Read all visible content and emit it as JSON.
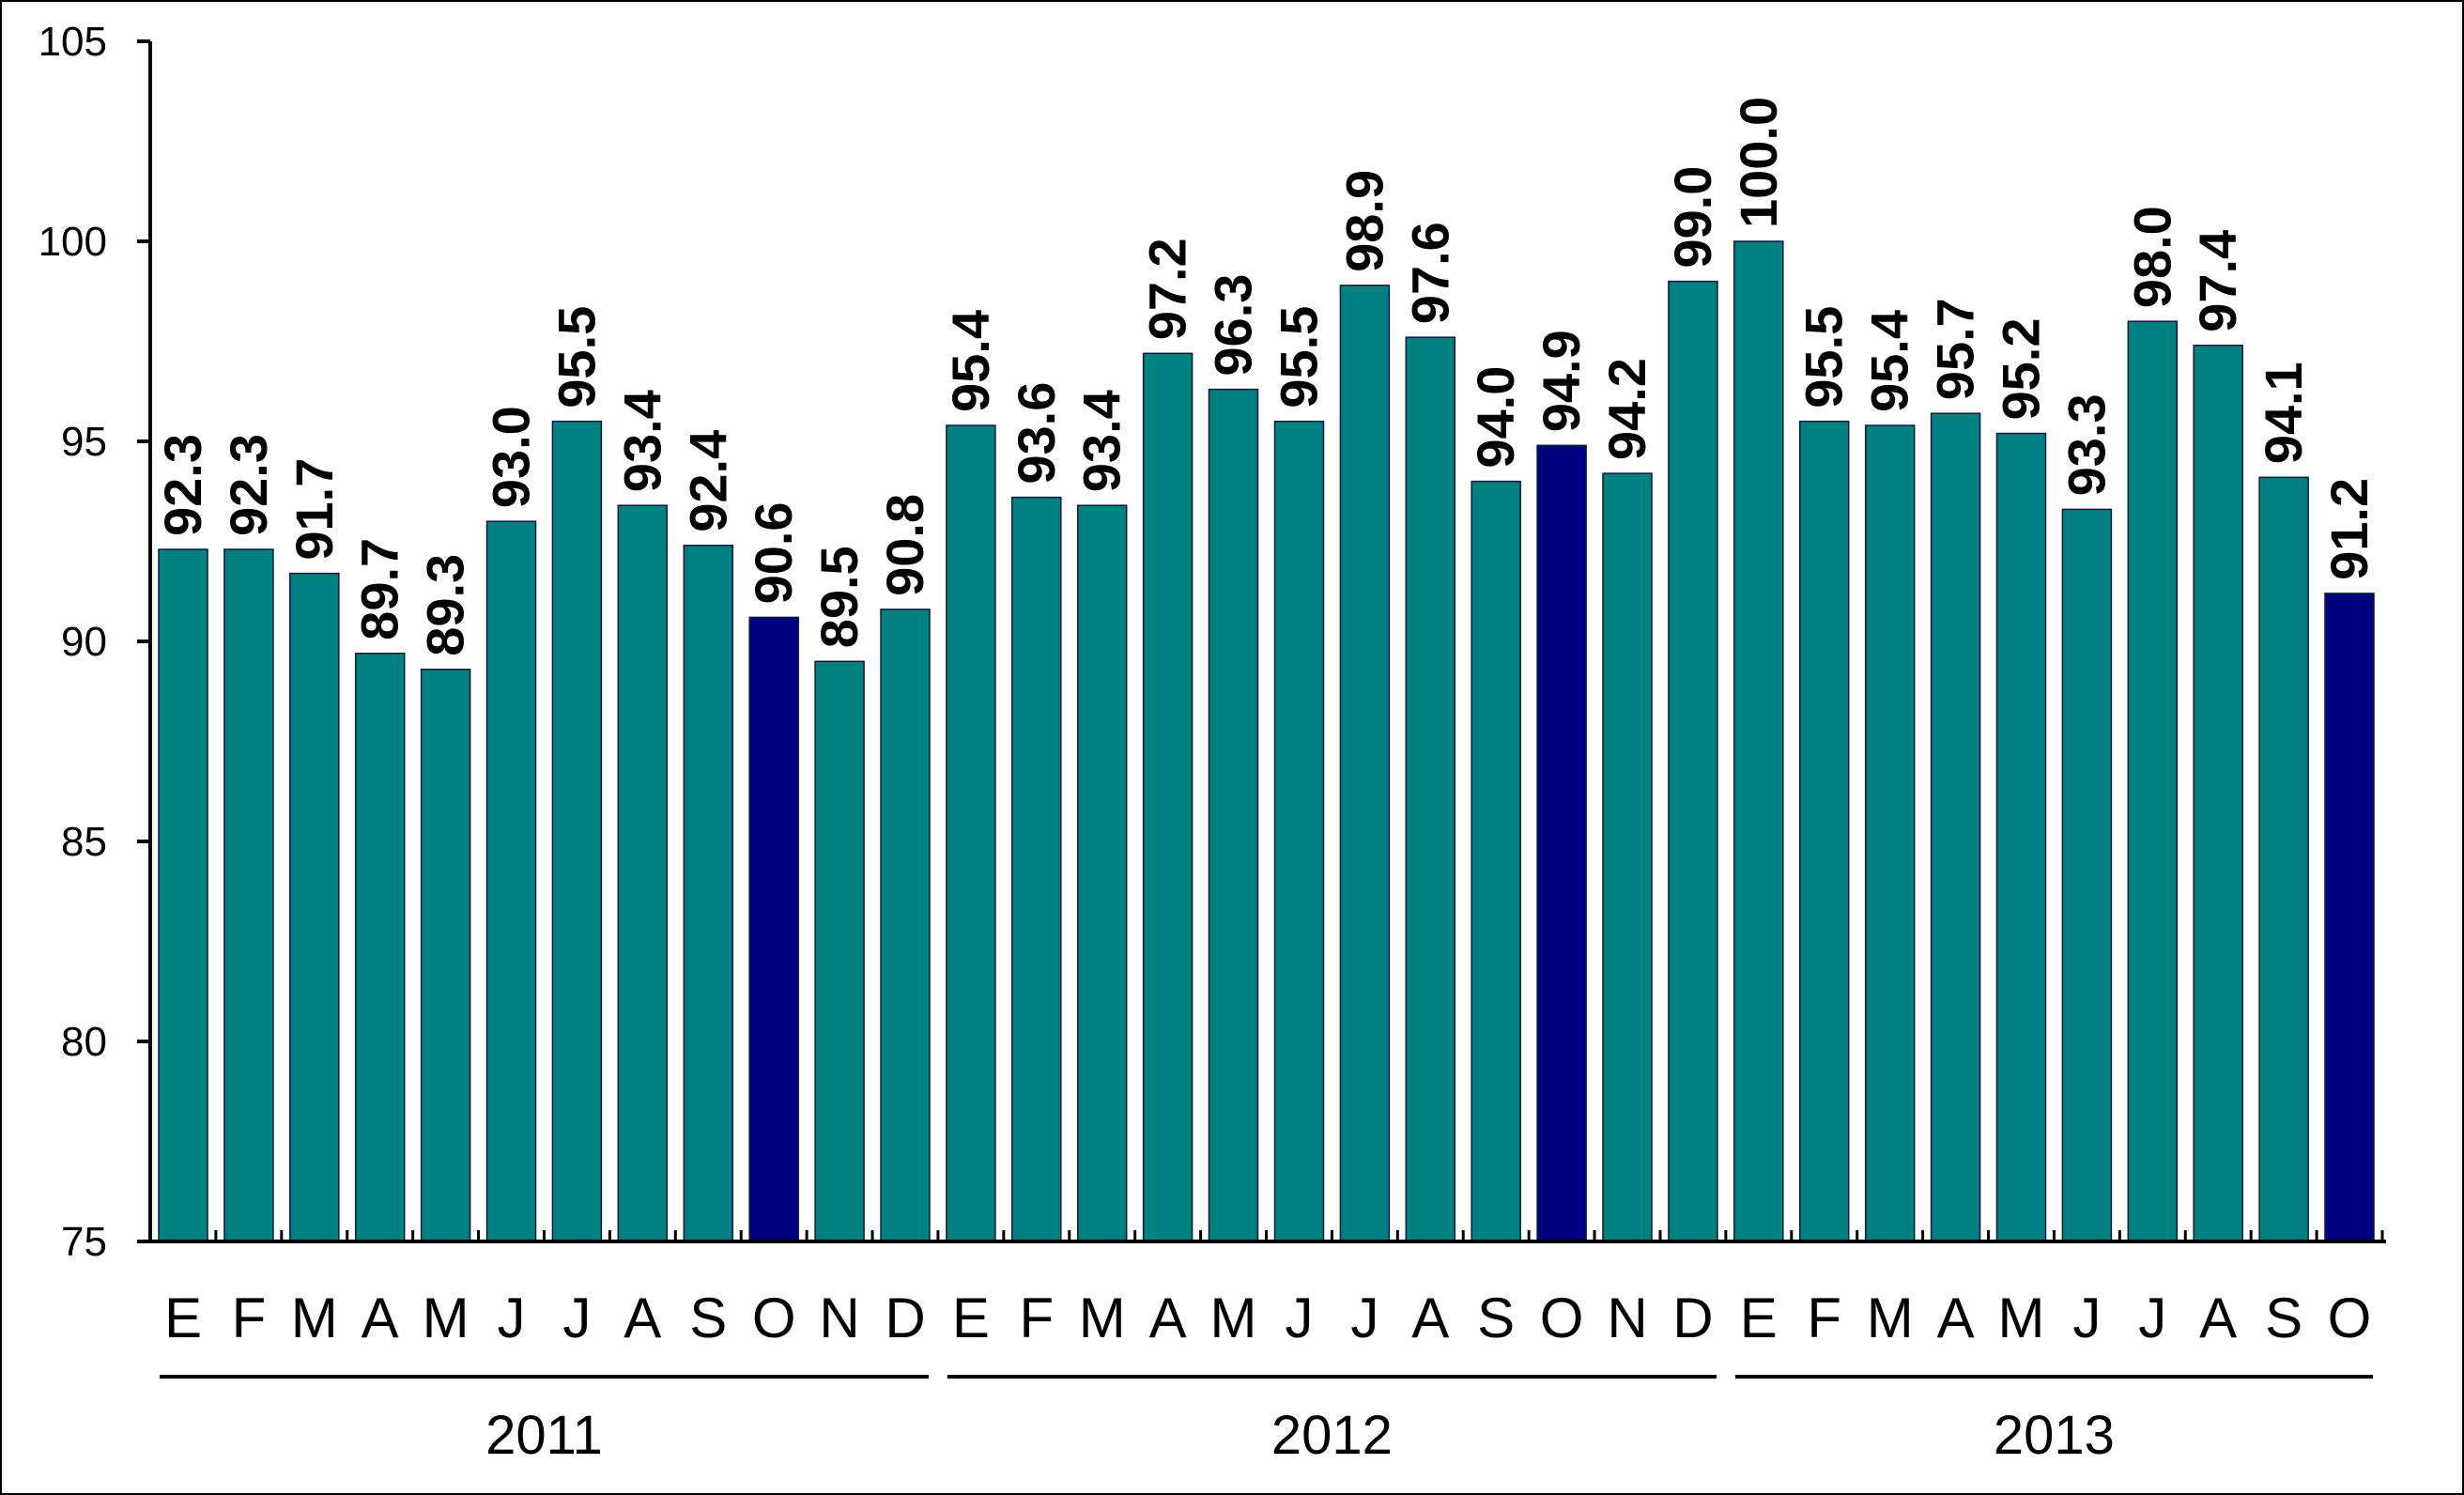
{
  "chart_data": {
    "type": "bar",
    "categories": [
      "E",
      "F",
      "M",
      "A",
      "M",
      "J",
      "J",
      "A",
      "S",
      "O",
      "N",
      "D",
      "E",
      "F",
      "M",
      "A",
      "M",
      "J",
      "J",
      "A",
      "S",
      "O",
      "N",
      "D",
      "E",
      "F",
      "M",
      "A",
      "M",
      "J",
      "J",
      "A",
      "S",
      "O"
    ],
    "values": [
      92.3,
      92.3,
      91.7,
      89.7,
      89.3,
      93.0,
      95.5,
      93.4,
      92.4,
      90.6,
      89.5,
      90.8,
      95.4,
      93.6,
      93.4,
      97.2,
      96.3,
      95.5,
      98.9,
      97.6,
      94.0,
      94.9,
      94.2,
      99.0,
      100.0,
      95.5,
      95.4,
      95.7,
      95.2,
      93.3,
      98.0,
      97.4,
      94.1,
      91.2
    ],
    "value_labels": [
      "92.3",
      "92.3",
      "91.7",
      "89.7",
      "89.3",
      "93.0",
      "95.5",
      "93.4",
      "92.4",
      "90.6",
      "89.5",
      "90.8",
      "95.4",
      "93.6",
      "93.4",
      "97.2",
      "96.3",
      "95.5",
      "98.9",
      "97.6",
      "94.0",
      "94.9",
      "94.2",
      "99.0",
      "100.0",
      "95.5",
      "95.4",
      "95.7",
      "95.2",
      "93.3",
      "98.0",
      "97.4",
      "94.1",
      "91.2"
    ],
    "highlight_indices": [
      9,
      21,
      33
    ],
    "groups": [
      {
        "label": "2011",
        "start": 0,
        "count": 12
      },
      {
        "label": "2012",
        "start": 12,
        "count": 12
      },
      {
        "label": "2013",
        "start": 24,
        "count": 10
      }
    ],
    "ylim": [
      75,
      105
    ],
    "yticks": [
      75,
      80,
      85,
      90,
      95,
      100,
      105
    ],
    "title": "",
    "xlabel": "",
    "ylabel": "",
    "grid": false,
    "colors": {
      "bar": "#008080",
      "highlight": "#000080",
      "axis": "#000000",
      "bar_edge": "#0a1a3a"
    }
  }
}
